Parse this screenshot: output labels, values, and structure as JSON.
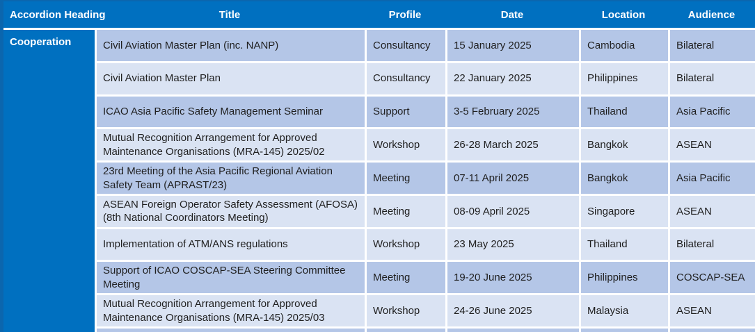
{
  "table": {
    "columns": [
      {
        "label": "Accordion Heading"
      },
      {
        "label": "Title"
      },
      {
        "label": "Profile"
      },
      {
        "label": "Date"
      },
      {
        "label": "Location"
      },
      {
        "label": "Audience"
      }
    ],
    "accordion_group": "Cooperation",
    "rows": [
      {
        "title": "Civil Aviation Master Plan (inc. NANP)",
        "profile": "Consultancy",
        "date": "15 January 2025",
        "location": "Cambodia",
        "audience": "Bilateral",
        "shade": "dark"
      },
      {
        "title": "Civil Aviation Master Plan",
        "profile": "Consultancy",
        "date": "22 January 2025",
        "location": "Philippines",
        "audience": "Bilateral",
        "shade": "light"
      },
      {
        "title": "ICAO Asia Pacific Safety Management Seminar",
        "profile": "Support",
        "date": "3-5 February 2025",
        "location": "Thailand",
        "audience": "Asia Pacific",
        "shade": "dark"
      },
      {
        "title": "Mutual Recognition Arrangement for Approved Maintenance Organisations (MRA-145) 2025/02",
        "profile": "Workshop",
        "date": "26-28 March 2025",
        "location": "Bangkok",
        "audience": "ASEAN",
        "shade": "light"
      },
      {
        "title": "23rd Meeting of the Asia Pacific Regional Aviation Safety Team (APRAST/23)",
        "profile": "Meeting",
        "date": "07-11 April 2025",
        "location": "Bangkok",
        "audience": "Asia Pacific",
        "shade": "dark"
      },
      {
        "title": "ASEAN Foreign Operator Safety Assessment (AFOSA) (8th National Coordinators Meeting)",
        "profile": "Meeting",
        "date": "08-09 April 2025",
        "location": "Singapore",
        "audience": "ASEAN",
        "shade": "light"
      },
      {
        "title": "Implementation of ATM/ANS regulations",
        "profile": "Workshop",
        "date": "23 May 2025",
        "location": "Thailand",
        "audience": "Bilateral",
        "shade": "light"
      },
      {
        "title": "Support of ICAO COSCAP-SEA Steering Committee Meeting",
        "profile": "Meeting",
        "date": "19-20 June 2025",
        "location": "Philippines",
        "audience": "COSCAP-SEA",
        "shade": "dark"
      },
      {
        "title": "Mutual Recognition Arrangement for Approved Maintenance Organisations (MRA-145) 2025/03",
        "profile": "Workshop",
        "date": "24-26 June 2025",
        "location": "Malaysia",
        "audience": "ASEAN",
        "shade": "light"
      }
    ],
    "partial_row_shade": "dark"
  },
  "colors": {
    "header_bg": "#0070c0",
    "header_text": "#ffffff",
    "row_dark": "#b4c6e7",
    "row_light": "#dae3f3",
    "body_text": "#1f1f1f",
    "separator": "#ffffff",
    "panel_edge": "#0b66ae"
  }
}
